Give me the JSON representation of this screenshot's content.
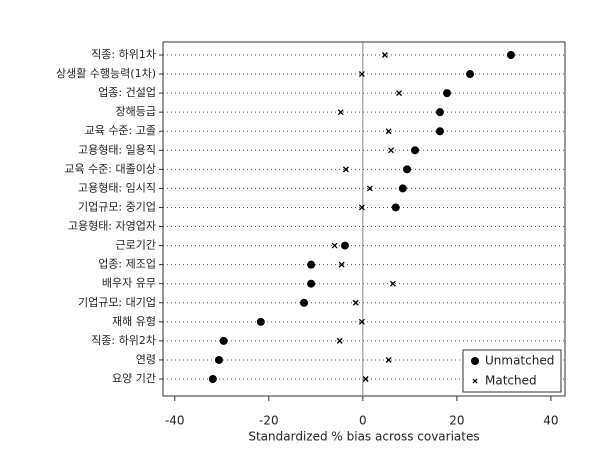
{
  "chart_data": {
    "type": "dot",
    "xlabel": "Standardized % bias across covariates",
    "categories": [
      "직종: 하위1차",
      "상생활 수행능력(1차)",
      "업종: 건설업",
      "장해등급",
      "교육 수준: 고졸",
      "고용형태: 일용직",
      "교육 수준: 대졸이상",
      "고용형태: 임시직",
      "기업규모: 중기업",
      "고용형태: 자영업자",
      "근로기간",
      "업종: 제조업",
      "배우자 유무",
      "기업규모: 대기업",
      "재해 유형",
      "직종: 하위2차",
      "연령",
      "요양 기간"
    ],
    "series": [
      {
        "name": "Unmatched",
        "marker": "circle",
        "color": "#000000",
        "values": [
          31.5,
          22.8,
          17.9,
          16.4,
          16.4,
          11.1,
          9.4,
          8.5,
          7.0,
          null,
          -3.8,
          -11.0,
          -11.0,
          -12.5,
          -21.7,
          -29.6,
          -30.6,
          -31.9
        ]
      },
      {
        "name": "Matched",
        "marker": "x",
        "color": "#000000",
        "values": [
          4.7,
          -0.2,
          7.7,
          -4.7,
          5.5,
          6.0,
          -3.6,
          1.5,
          -0.2,
          null,
          -6.0,
          -4.5,
          6.4,
          -1.5,
          -0.2,
          -4.9,
          5.5,
          0.6
        ]
      }
    ],
    "xlim": [
      -42.5,
      43
    ],
    "xticks": [
      -40,
      -20,
      0,
      20,
      40
    ],
    "reference_line": 0,
    "legend": "lower right"
  }
}
